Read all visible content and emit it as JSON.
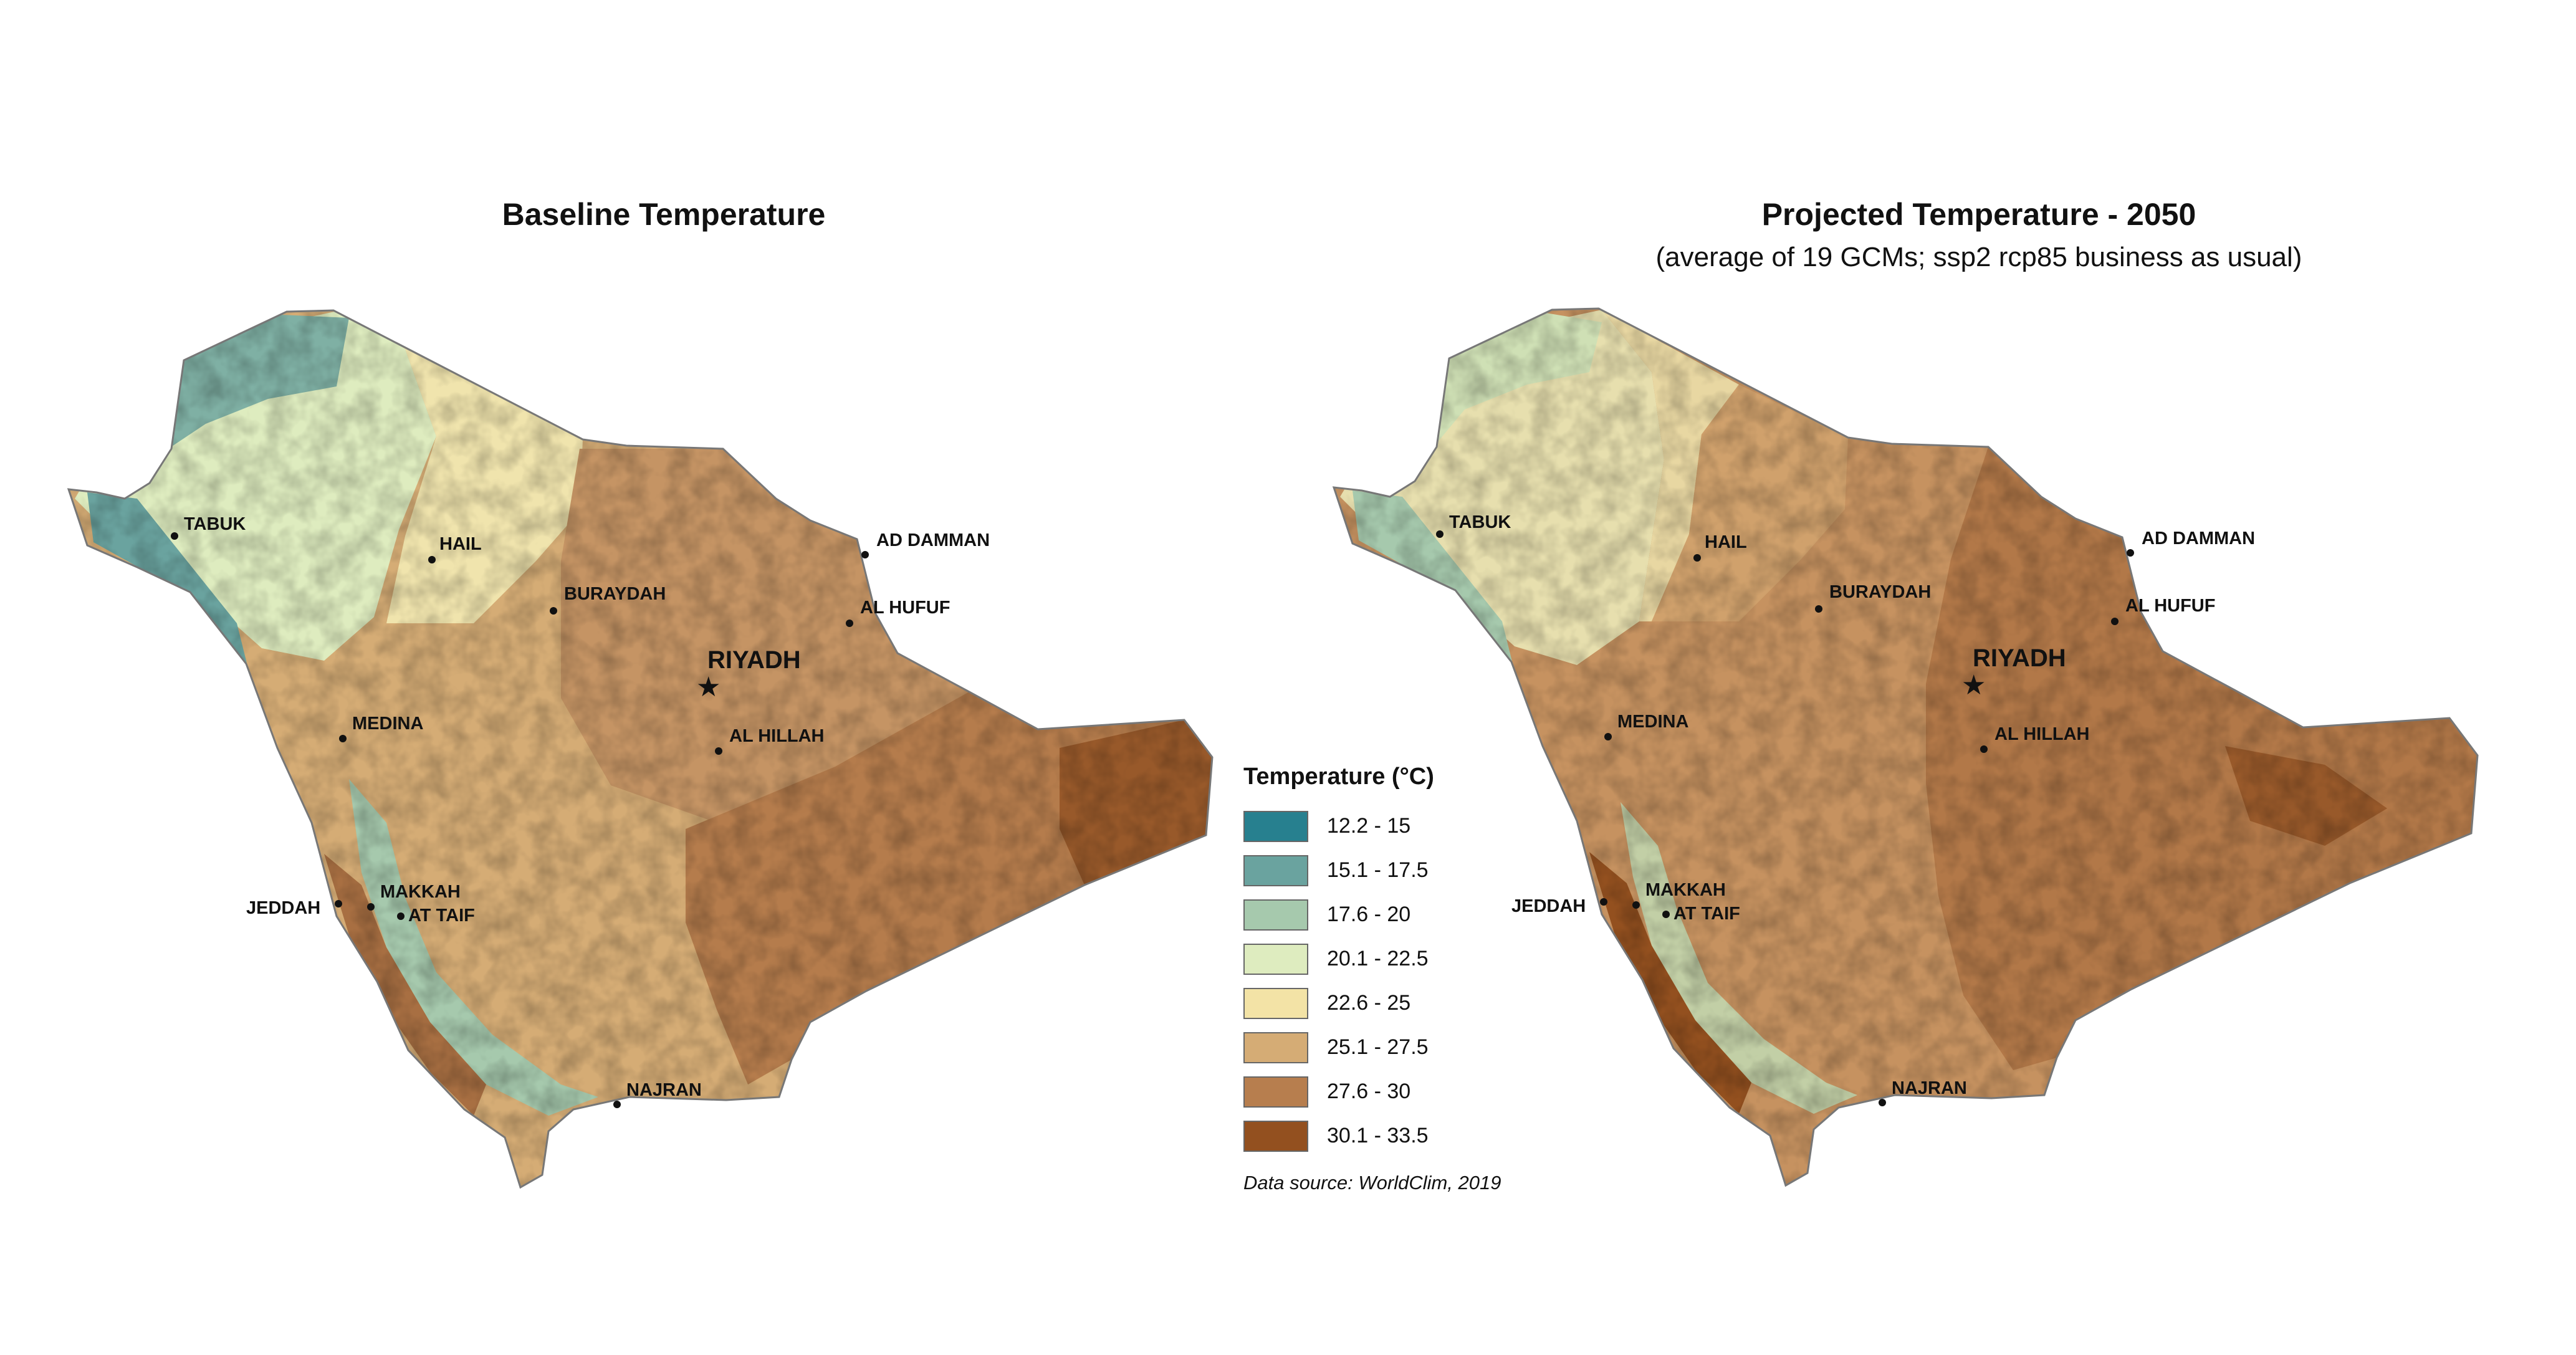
{
  "maps": {
    "baseline": {
      "title": "Baseline Temperature"
    },
    "projected": {
      "title": "Projected Temperature - 2050",
      "subtitle": "(average of 19 GCMs; ssp2 rcp85 business as usual)"
    }
  },
  "cities": {
    "tabuk": "TABUK",
    "hail": "HAIL",
    "buraydah": "BURAYDAH",
    "ad_damman": "AD DAMMAN",
    "al_hufuf": "AL HUFUF",
    "riyadh": "RIYADH",
    "al_hillah": "AL HILLAH",
    "medina": "MEDINA",
    "jeddah": "JEDDAH",
    "makkah": "MAKKAH",
    "at_taif": "AT TAIF",
    "najran": "NAJRAN"
  },
  "legend": {
    "title": "Temperature (°C)",
    "items": [
      {
        "label": "12.2 - 15",
        "color": "#27808f"
      },
      {
        "label": "15.1 - 17.5",
        "color": "#6aa39f"
      },
      {
        "label": "17.6 - 20",
        "color": "#a6c9ad"
      },
      {
        "label": "20.1 - 22.5",
        "color": "#deecbf"
      },
      {
        "label": "22.6 - 25",
        "color": "#f3e3a6"
      },
      {
        "label": "25.1 - 27.5",
        "color": "#d5ac75"
      },
      {
        "label": "27.6 - 30",
        "color": "#b77e4e"
      },
      {
        "label": "30.1 - 33.5",
        "color": "#93501f"
      }
    ]
  },
  "source": "Data source: WorldClim, 2019"
}
